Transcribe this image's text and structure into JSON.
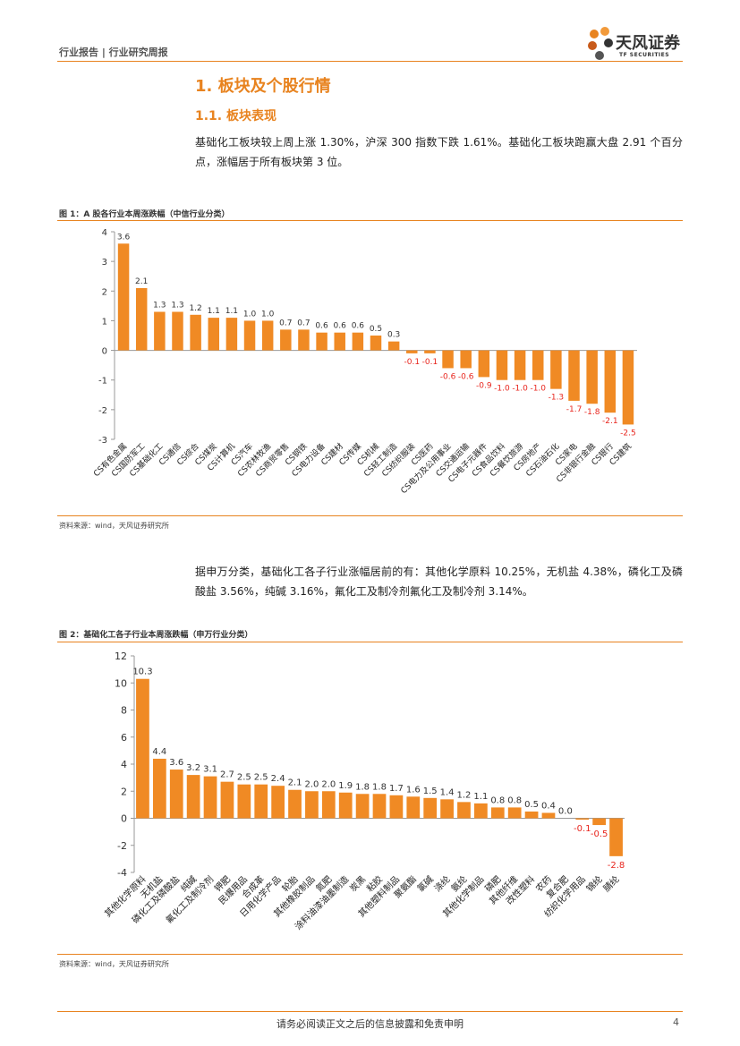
{
  "header": {
    "left": "行业报告 | 行业研究周报",
    "logo_cn": "天风证券",
    "logo_en": "TF SECURITIES"
  },
  "section": {
    "h1": "1. 板块及个股行情",
    "h2": "1.1. 板块表现",
    "para1": "基础化工板块较上周上涨 1.30%，沪深 300 指数下跌 1.61%。基础化工板块跑赢大盘 2.91 个百分点，涨幅居于所有板块第 3 位。",
    "para2": "据申万分类，基础化工各子行业涨幅居前的有：其他化学原料 10.25%，无机盐 4.38%，磷化工及磷酸盐 3.56%，纯碱 3.16%，氟化工及制冷剂氟化工及制冷剂 3.14%。"
  },
  "fig1": {
    "title": "图 1：A 股各行业本周涨跌幅（中信行业分类）",
    "source": "资料来源：wind，天风证券研究所"
  },
  "fig2": {
    "title": "图 2：基础化工各子行业本周涨跌幅（申万行业分类）",
    "source": "资料来源：wind，天风证券研究所"
  },
  "footer": {
    "text": "请务必阅读正文之后的信息披露和免责申明",
    "page": "4"
  },
  "colors": {
    "accent": "#E8831F",
    "bar": "#F08A24",
    "negative_label": "#E8261E"
  },
  "chart_data": [
    {
      "type": "bar",
      "title": "A 股各行业本周涨跌幅（中信行业分类）",
      "ylim": [
        -3,
        4
      ],
      "yticks": [
        4,
        3,
        2,
        1,
        0,
        -1,
        -2,
        -3
      ],
      "categories": [
        "CS有色金属",
        "CS国防军工",
        "CS基础化工",
        "CS通信",
        "CS综合",
        "CS煤炭",
        "CS计算机",
        "CS汽车",
        "CS农林牧渔",
        "CS商贸零售",
        "CS钢铁",
        "CS电力设备",
        "CS建材",
        "CS传媒",
        "CS机械",
        "CS轻工制造",
        "CS纺织服装",
        "CS医药",
        "CS电力及公用事业",
        "CS交通运输",
        "CS电子元器件",
        "CS食品饮料",
        "CS餐饮旅游",
        "CS房地产",
        "CS石油石化",
        "CS家电",
        "CS非银行金融",
        "CS银行",
        "CS建筑"
      ],
      "values": [
        3.6,
        2.1,
        1.3,
        1.3,
        1.2,
        1.1,
        1.1,
        1.0,
        1.0,
        0.7,
        0.7,
        0.6,
        0.6,
        0.6,
        0.5,
        0.3,
        -0.1,
        -0.1,
        -0.6,
        -0.6,
        -0.9,
        -1.0,
        -1.0,
        -1.0,
        -1.3,
        -1.7,
        -1.8,
        -2.1,
        -2.5
      ],
      "labels": [
        "3.6",
        "2.1",
        "1.3",
        "1.3",
        "1.2",
        "1.1",
        "1.1",
        "1.0",
        "1.0",
        "0.7",
        "0.7",
        "0.6",
        "0.6",
        "0.6",
        "0.5",
        "0.3",
        "-0.1",
        "-0.1",
        "-0.6",
        "-0.6",
        "-0.9",
        "-1.0",
        "-1.0",
        "-1.0",
        "-1.3",
        "-1.7",
        "-1.8",
        "-2.1",
        "-2.5"
      ]
    },
    {
      "type": "bar",
      "title": "基础化工各子行业本周涨跌幅（申万行业分类）",
      "ylim": [
        -4,
        12
      ],
      "yticks": [
        12,
        10,
        8,
        6,
        4,
        2,
        0,
        -2,
        -4
      ],
      "categories": [
        "其他化学原料",
        "无机盐",
        "磷化工及磷酸盐",
        "纯碱",
        "氟化工及制冷剂",
        "钾肥",
        "民爆用品",
        "合成革",
        "日用化学产品",
        "轮胎",
        "其他橡胶制品",
        "氮肥",
        "涂料油漆油墨制造",
        "炭黑",
        "粘胶",
        "其他塑料制品",
        "聚氨酯",
        "氯碱",
        "涤纶",
        "氨纶",
        "其他化学制品",
        "磷肥",
        "其他纤维",
        "改性塑料",
        "农药",
        "复合肥",
        "纺织化学用品",
        "锦纶",
        "腈纶"
      ],
      "values": [
        10.3,
        4.4,
        3.6,
        3.2,
        3.1,
        2.7,
        2.5,
        2.5,
        2.4,
        2.1,
        2.0,
        2.0,
        1.9,
        1.8,
        1.8,
        1.7,
        1.6,
        1.5,
        1.4,
        1.2,
        1.1,
        0.8,
        0.8,
        0.5,
        0.4,
        0.0,
        -0.1,
        -0.5,
        -2.8
      ],
      "labels": [
        "10.3",
        "4.4",
        "3.6",
        "3.2",
        "3.1",
        "2.7",
        "2.5",
        "2.5",
        "2.4",
        "2.1",
        "2.0",
        "2.0",
        "1.9",
        "1.8",
        "1.8",
        "1.7",
        "1.6",
        "1.5",
        "1.4",
        "1.2",
        "1.1",
        "0.8",
        "0.8",
        "0.5",
        "0.4",
        "0.0",
        "-0.1",
        "-0.5",
        "-2.8"
      ]
    }
  ]
}
